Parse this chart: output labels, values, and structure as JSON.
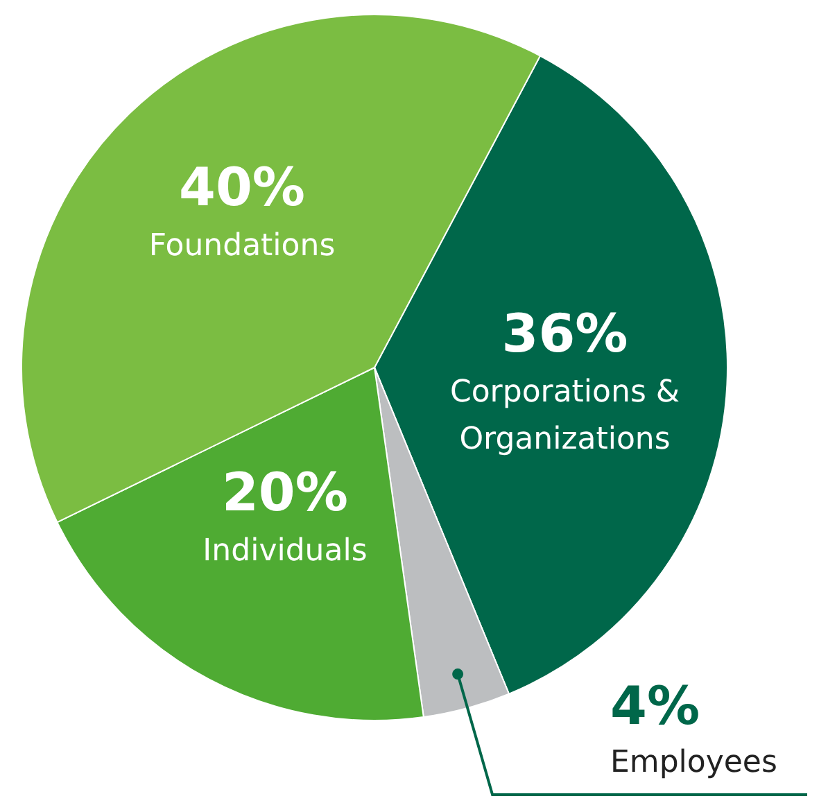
{
  "chart_data": {
    "type": "pie",
    "categories": [
      "Corporations & Organizations",
      "Employees",
      "Individuals",
      "Foundations"
    ],
    "values": [
      36,
      4,
      20,
      40
    ],
    "colors": [
      "#00674a",
      "#bcbec0",
      "#4fab33",
      "#7bbd42"
    ],
    "value_labels": [
      "36%",
      "4%",
      "20%",
      "40%"
    ],
    "legend": false
  }
}
